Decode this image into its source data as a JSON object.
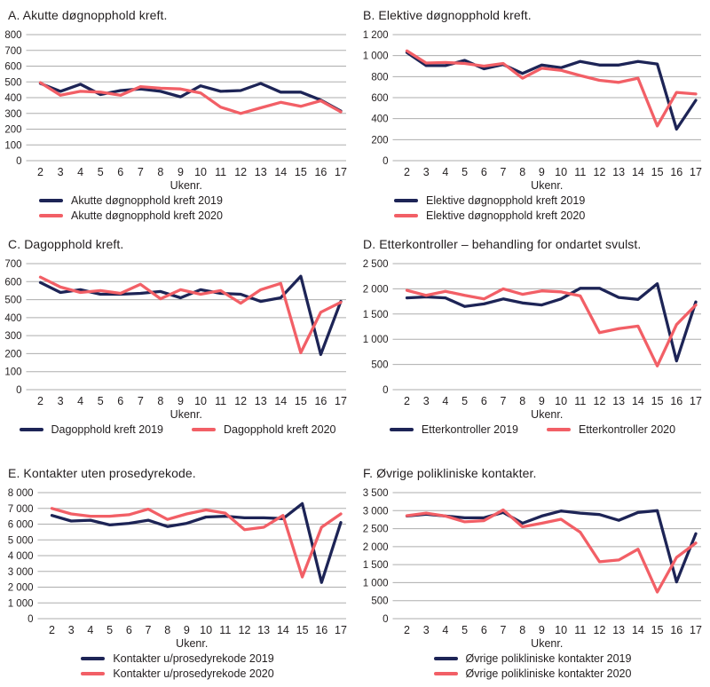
{
  "colors": {
    "navy": "#1d2456",
    "red": "#f25f66",
    "grid": "#adadad",
    "text": "#231f20",
    "background": "#ffffff"
  },
  "chart_data": [
    {
      "type": "line",
      "title": "A. Akutte døgnopphold kreft.",
      "xlabel": "Ukenr.",
      "x": [
        "2",
        "3",
        "4",
        "5",
        "6",
        "7",
        "8",
        "9",
        "10",
        "11",
        "12",
        "13",
        "14",
        "15",
        "16",
        "17"
      ],
      "ylim": [
        0,
        800
      ],
      "ytick_values": [
        0,
        100,
        200,
        300,
        400,
        500,
        600,
        700,
        800
      ],
      "ytick_labels": [
        "0",
        "100",
        "200",
        "300",
        "400",
        "500",
        "600",
        "700",
        "800"
      ],
      "grid": "horizontal",
      "legend_position": "bottom",
      "legend_layout": "stacked-left",
      "series": [
        {
          "name": "Akutte døgnopphold kreft 2019",
          "color": "navy",
          "values": [
            490,
            440,
            485,
            420,
            445,
            455,
            440,
            405,
            475,
            440,
            445,
            490,
            435,
            435,
            385,
            315
          ]
        },
        {
          "name": "Akutte døgnopphold kreft 2020",
          "color": "red",
          "values": [
            495,
            415,
            440,
            435,
            415,
            470,
            460,
            455,
            430,
            340,
            300,
            335,
            370,
            345,
            380,
            310
          ]
        }
      ]
    },
    {
      "type": "line",
      "title": "B. Elektive døgnopphold kreft.",
      "xlabel": "Ukenr.",
      "x": [
        "2",
        "3",
        "4",
        "5",
        "6",
        "7",
        "8",
        "9",
        "10",
        "11",
        "12",
        "13",
        "14",
        "15",
        "16",
        "17"
      ],
      "ylim": [
        0,
        1200
      ],
      "ytick_values": [
        0,
        200,
        400,
        600,
        800,
        1000,
        1200
      ],
      "ytick_labels": [
        "0",
        "200",
        "400",
        "600",
        "800",
        "1 000",
        "1 200"
      ],
      "grid": "horizontal",
      "legend_position": "bottom",
      "legend_layout": "stacked-left",
      "series": [
        {
          "name": "Elektive døgnopphold kreft 2019",
          "color": "navy",
          "values": [
            1030,
            905,
            905,
            955,
            875,
            915,
            830,
            910,
            885,
            945,
            910,
            910,
            945,
            920,
            300,
            575
          ]
        },
        {
          "name": "Elektive døgnopphold kreft 2020",
          "color": "red",
          "values": [
            1045,
            930,
            935,
            925,
            900,
            925,
            785,
            880,
            860,
            810,
            765,
            745,
            785,
            330,
            650,
            635
          ]
        }
      ]
    },
    {
      "type": "line",
      "title": "C. Dagopphold kreft.",
      "xlabel": "Ukenr.",
      "x": [
        "2",
        "3",
        "4",
        "5",
        "6",
        "7",
        "8",
        "9",
        "10",
        "11",
        "12",
        "13",
        "14",
        "15",
        "16",
        "17"
      ],
      "ylim": [
        0,
        700
      ],
      "ytick_values": [
        0,
        100,
        200,
        300,
        400,
        500,
        600,
        700
      ],
      "ytick_labels": [
        "0",
        "100",
        "200",
        "300",
        "400",
        "500",
        "600",
        "700"
      ],
      "grid": "horizontal",
      "legend_position": "bottom",
      "legend_layout": "row-center",
      "series": [
        {
          "name": "Dagopphold kreft 2019",
          "color": "navy",
          "values": [
            595,
            540,
            555,
            530,
            530,
            535,
            545,
            510,
            555,
            535,
            530,
            490,
            510,
            630,
            195,
            490
          ]
        },
        {
          "name": "Dagopphold kreft 2020",
          "color": "red",
          "values": [
            625,
            570,
            540,
            550,
            535,
            585,
            505,
            555,
            530,
            550,
            480,
            555,
            590,
            205,
            430,
            485
          ]
        }
      ]
    },
    {
      "type": "line",
      "title": "D. Etterkontroller – behandling for ondartet svulst.",
      "xlabel": "Ukenr.",
      "x": [
        "2",
        "3",
        "4",
        "5",
        "6",
        "7",
        "8",
        "9",
        "10",
        "11",
        "12",
        "13",
        "14",
        "15",
        "16",
        "17"
      ],
      "ylim": [
        0,
        2500
      ],
      "ytick_values": [
        0,
        500,
        1000,
        1500,
        2000,
        2500
      ],
      "ytick_labels": [
        "0",
        "500",
        "1 000",
        "1 500",
        "2 000",
        "2 500"
      ],
      "grid": "horizontal",
      "legend_position": "bottom",
      "legend_layout": "row-center",
      "series": [
        {
          "name": "Etterkontroller 2019",
          "color": "navy",
          "values": [
            1820,
            1840,
            1820,
            1650,
            1700,
            1800,
            1720,
            1680,
            1800,
            2010,
            2010,
            1830,
            1790,
            2100,
            570,
            1740
          ]
        },
        {
          "name": "Etterkontroller 2020",
          "color": "red",
          "values": [
            1970,
            1870,
            1950,
            1870,
            1800,
            2000,
            1890,
            1960,
            1940,
            1860,
            1130,
            1210,
            1260,
            470,
            1290,
            1680
          ]
        }
      ]
    },
    {
      "type": "line",
      "title": "E. Kontakter uten prosedyrekode.",
      "xlabel": "Ukenr.",
      "x": [
        "2",
        "3",
        "4",
        "5",
        "6",
        "7",
        "8",
        "9",
        "10",
        "11",
        "12",
        "13",
        "14",
        "15",
        "16",
        "17"
      ],
      "ylim": [
        0,
        8000
      ],
      "ytick_values": [
        0,
        1000,
        2000,
        3000,
        4000,
        5000,
        6000,
        7000,
        8000
      ],
      "ytick_labels": [
        "0",
        "1 000",
        "2 000",
        "3 000",
        "4 000",
        "5 000",
        "6 000",
        "7 000",
        "8 000"
      ],
      "grid": "horizontal",
      "legend_position": "bottom",
      "legend_layout": "stacked-center",
      "series": [
        {
          "name": "Kontakter u/prosedyrekode 2019",
          "color": "navy",
          "values": [
            6550,
            6200,
            6250,
            5950,
            6050,
            6250,
            5850,
            6050,
            6450,
            6500,
            6400,
            6400,
            6350,
            7300,
            2300,
            6100
          ]
        },
        {
          "name": "Kontakter u/prosedyrekode 2020",
          "color": "red",
          "values": [
            7000,
            6650,
            6500,
            6500,
            6600,
            6950,
            6300,
            6650,
            6900,
            6700,
            5650,
            5800,
            6550,
            2650,
            5800,
            6650
          ]
        }
      ]
    },
    {
      "type": "line",
      "title": "F. Øvrige polikliniske kontakter.",
      "xlabel": "Ukenr.",
      "x": [
        "2",
        "3",
        "4",
        "5",
        "6",
        "7",
        "8",
        "9",
        "10",
        "11",
        "12",
        "13",
        "14",
        "15",
        "16",
        "17"
      ],
      "ylim": [
        0,
        3500
      ],
      "ytick_values": [
        0,
        500,
        1000,
        1500,
        2000,
        2500,
        3000,
        3500
      ],
      "ytick_labels": [
        "0",
        "500",
        "1 000",
        "1 500",
        "2 000",
        "2 500",
        "3 000",
        "3 500"
      ],
      "grid": "horizontal",
      "legend_position": "bottom",
      "legend_layout": "stacked-center",
      "series": [
        {
          "name": "Øvrige polikliniske kontakter 2019",
          "color": "navy",
          "values": [
            2850,
            2900,
            2850,
            2800,
            2800,
            2950,
            2650,
            2850,
            2990,
            2930,
            2890,
            2730,
            2950,
            3000,
            1020,
            2360
          ]
        },
        {
          "name": "Øvrige polikliniske kontakter 2020",
          "color": "red",
          "values": [
            2860,
            2930,
            2850,
            2690,
            2720,
            3020,
            2550,
            2650,
            2760,
            2400,
            1580,
            1630,
            1930,
            740,
            1700,
            2100
          ]
        }
      ]
    }
  ]
}
